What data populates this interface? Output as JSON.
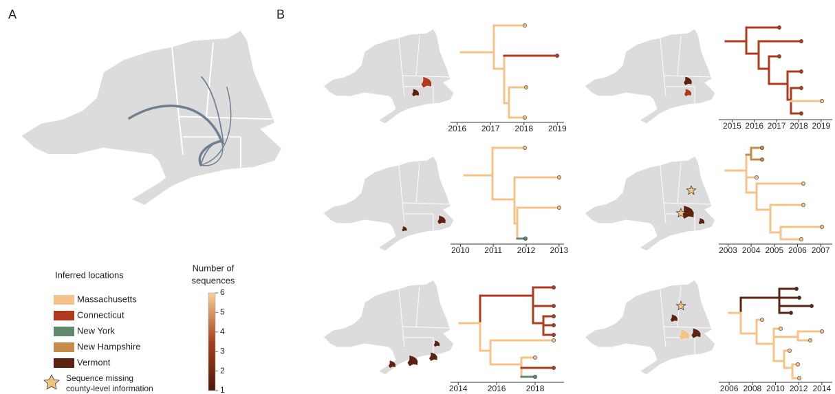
{
  "panel_a": {
    "label": "A"
  },
  "panel_b": {
    "label": "B"
  },
  "legend": {
    "title": "Inferred locations",
    "items": [
      {
        "label": "Massachusetts",
        "color": "#f5c388"
      },
      {
        "label": "Connecticut",
        "color": "#b23a1c"
      },
      {
        "label": "New York",
        "color": "#5f8a6e"
      },
      {
        "label": "New Hampshire",
        "color": "#c48c48"
      },
      {
        "label": "Vermont",
        "color": "#5c2410"
      }
    ],
    "star_note": [
      "Sequence missing",
      "county-level information"
    ]
  },
  "colorbar": {
    "title": [
      "Number of",
      "sequences"
    ],
    "lim": [
      1,
      6
    ],
    "ticks": [
      1,
      2,
      3,
      4,
      5,
      6
    ],
    "colors": [
      "#4d1a08",
      "#a8401f",
      "#f7cf97"
    ]
  },
  "trees": [
    {
      "xlim": [
        2015.8,
        2019.2
      ],
      "xticks": [
        2016,
        2017,
        2018,
        2019
      ]
    },
    {
      "xlim": [
        2014.4,
        2019.5
      ],
      "xticks": [
        2015,
        2016,
        2017,
        2018,
        2019
      ]
    },
    {
      "xlim": [
        2009.7,
        2013.15
      ],
      "xticks": [
        2010,
        2011,
        2012,
        2013
      ]
    },
    {
      "xlim": [
        2002.6,
        2007.5
      ],
      "xticks": [
        2003,
        2004,
        2005,
        2006,
        2007
      ]
    },
    {
      "xlim": [
        2013.6,
        2019.5
      ],
      "xticks": [
        2014,
        2016,
        2018
      ]
    },
    {
      "xlim": [
        2005.1,
        2014.9
      ],
      "xticks": [
        2006,
        2008,
        2010,
        2012,
        2014
      ]
    }
  ]
}
